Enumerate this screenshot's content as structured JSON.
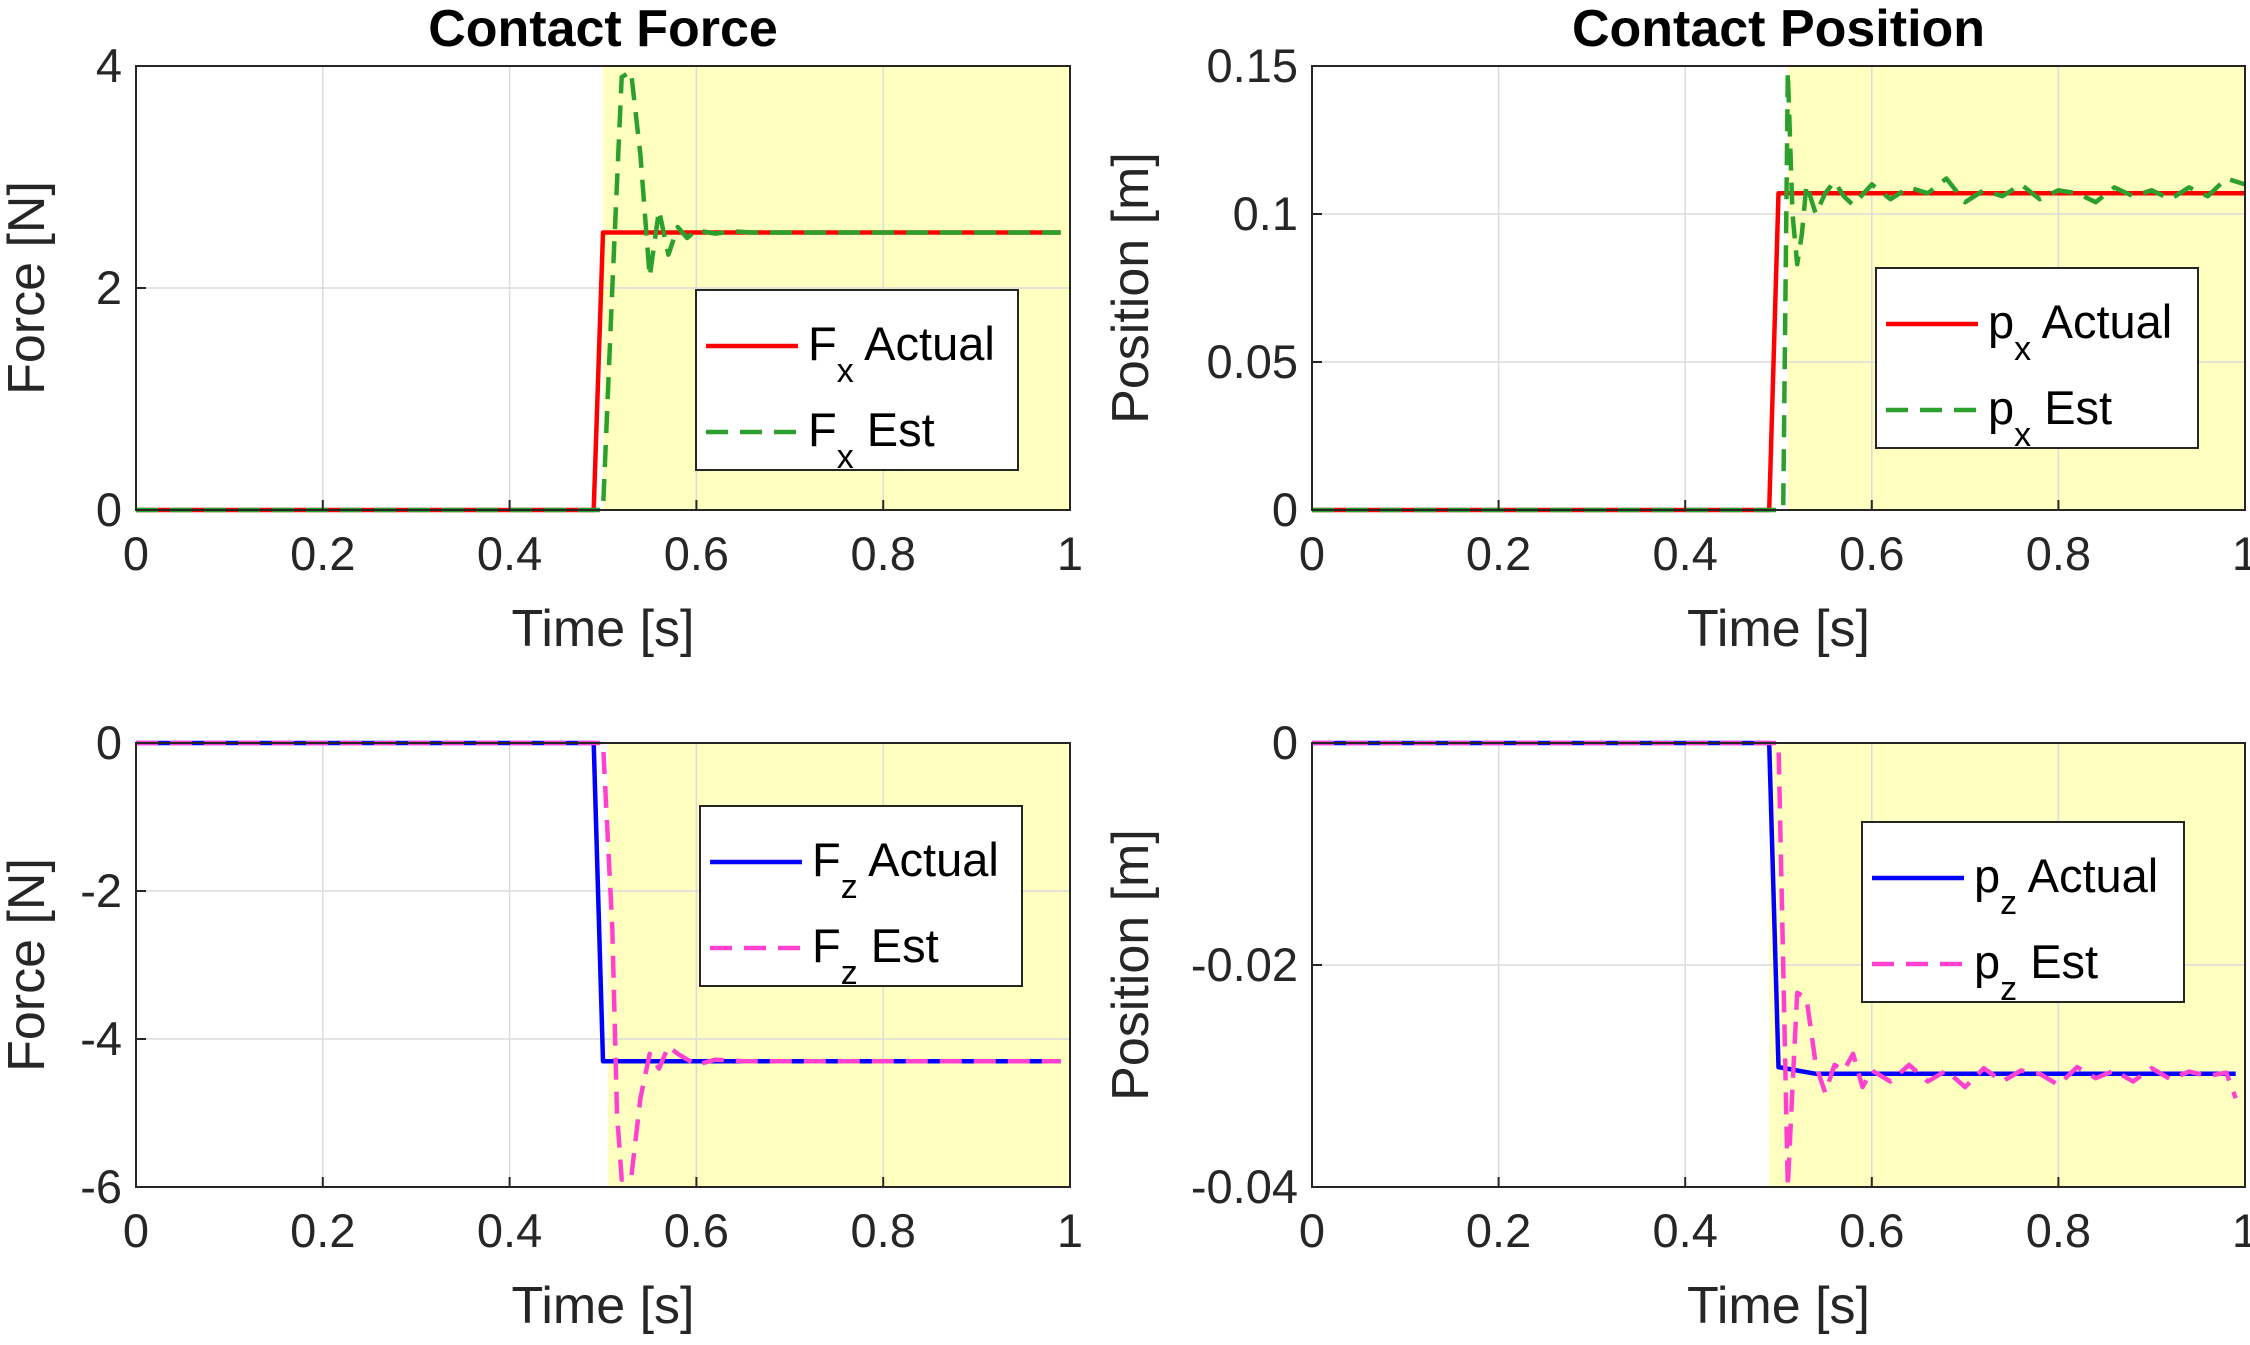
{
  "chart_data": [
    {
      "id": "force-x",
      "type": "line",
      "title": "Contact Force",
      "xlabel": "Time [s]",
      "ylabel": "Force [N]",
      "xlim": [
        0,
        1
      ],
      "ylim": [
        0,
        4
      ],
      "xticks": [
        0,
        0.2,
        0.4,
        0.6,
        0.8,
        1
      ],
      "xtick_labels": [
        "0",
        "0.2",
        "0.4",
        "0.6",
        "0.8",
        "1"
      ],
      "yticks": [
        0,
        2,
        4
      ],
      "ytick_labels": [
        "0",
        "2",
        "4"
      ],
      "grid": true,
      "shaded_region": {
        "x_start": 0.5,
        "x_end": 1,
        "color": "#ffffbf"
      },
      "legend_position": "center-right",
      "series": [
        {
          "name": "F_x Actual",
          "label_main": "F",
          "label_sub": "x",
          "label_rest": " Actual",
          "color": "#ff0000",
          "style": "solid",
          "x": [
            0,
            0.49,
            0.5,
            0.99
          ],
          "y": [
            0,
            0,
            2.5,
            2.5
          ]
        },
        {
          "name": "F_x Est",
          "label_main": "F",
          "label_sub": "x",
          "label_rest": " Est",
          "color": "#2ca02c",
          "style": "dashed",
          "x": [
            0,
            0.5,
            0.51,
            0.52,
            0.53,
            0.54,
            0.55,
            0.56,
            0.57,
            0.58,
            0.59,
            0.6,
            0.62,
            0.64,
            0.66,
            0.7,
            0.99
          ],
          "y": [
            0,
            0,
            2.0,
            3.9,
            3.95,
            3.2,
            2.1,
            2.7,
            2.3,
            2.55,
            2.45,
            2.52,
            2.49,
            2.51,
            2.5,
            2.5,
            2.5
          ]
        }
      ]
    },
    {
      "id": "position-x",
      "type": "line",
      "title": "Contact Position",
      "xlabel": "Time [s]",
      "ylabel": "Position [m]",
      "xlim": [
        0,
        1
      ],
      "ylim": [
        0,
        0.15
      ],
      "xticks": [
        0,
        0.2,
        0.4,
        0.6,
        0.8,
        1
      ],
      "xtick_labels": [
        "0",
        "0.2",
        "0.4",
        "0.6",
        "0.8",
        "1"
      ],
      "yticks": [
        0,
        0.05,
        0.1,
        0.15
      ],
      "ytick_labels": [
        "0",
        "0.05",
        "0.1",
        "0.15"
      ],
      "grid": true,
      "shaded_region": {
        "x_start": 0.51,
        "x_end": 1,
        "color": "#ffffbf"
      },
      "legend_position": "center-right",
      "series": [
        {
          "name": "p_x Actual",
          "label_main": "p",
          "label_sub": "x",
          "label_rest": " Actual",
          "color": "#ff0000",
          "style": "solid",
          "x": [
            0,
            0.49,
            0.5,
            1
          ],
          "y": [
            0,
            0,
            0.107,
            0.107
          ]
        },
        {
          "name": "p_x Est",
          "label_main": "p",
          "label_sub": "x",
          "label_rest": " Est",
          "color": "#2ca02c",
          "style": "dashed",
          "x": [
            0,
            0.505,
            0.51,
            0.515,
            0.52,
            0.525,
            0.53,
            0.54,
            0.55,
            0.56,
            0.57,
            0.58,
            0.6,
            0.62,
            0.64,
            0.66,
            0.68,
            0.7,
            0.72,
            0.74,
            0.76,
            0.78,
            0.8,
            0.82,
            0.84,
            0.86,
            0.88,
            0.9,
            0.92,
            0.94,
            0.96,
            0.98,
            1
          ],
          "y": [
            0,
            0,
            0.148,
            0.1,
            0.083,
            0.093,
            0.11,
            0.1,
            0.107,
            0.111,
            0.106,
            0.103,
            0.11,
            0.105,
            0.109,
            0.107,
            0.112,
            0.104,
            0.108,
            0.106,
            0.11,
            0.105,
            0.108,
            0.107,
            0.104,
            0.109,
            0.106,
            0.108,
            0.105,
            0.109,
            0.106,
            0.112,
            0.11
          ]
        }
      ]
    },
    {
      "id": "force-z",
      "type": "line",
      "title": "",
      "xlabel": "Time [s]",
      "ylabel": "Force [N]",
      "xlim": [
        0,
        1
      ],
      "ylim": [
        -6,
        0
      ],
      "xticks": [
        0,
        0.2,
        0.4,
        0.6,
        0.8,
        1
      ],
      "xtick_labels": [
        "0",
        "0.2",
        "0.4",
        "0.6",
        "0.8",
        "1"
      ],
      "yticks": [
        -6,
        -4,
        -2,
        0
      ],
      "ytick_labels": [
        "-6",
        "-4",
        "-2",
        "0"
      ],
      "grid": true,
      "shaded_region": {
        "x_start": 0.505,
        "x_end": 1,
        "color": "#ffffbf"
      },
      "legend_position": "center-right",
      "series": [
        {
          "name": "F_z Actual",
          "label_main": "F",
          "label_sub": "z",
          "label_rest": " Actual",
          "color": "#0000ff",
          "style": "solid",
          "x": [
            0,
            0.49,
            0.5,
            0.99
          ],
          "y": [
            0,
            0,
            -4.3,
            -4.3
          ]
        },
        {
          "name": "F_z Est",
          "label_main": "F",
          "label_sub": "z",
          "label_rest": " Est",
          "color": "#ff40d0",
          "style": "dashed",
          "x": [
            0,
            0.5,
            0.51,
            0.515,
            0.52,
            0.53,
            0.54,
            0.55,
            0.56,
            0.57,
            0.58,
            0.6,
            0.62,
            0.65,
            0.99
          ],
          "y": [
            0,
            0,
            -2.5,
            -5.0,
            -5.9,
            -5.9,
            -4.8,
            -4.2,
            -4.4,
            -4.1,
            -4.2,
            -4.35,
            -4.28,
            -4.3,
            -4.3
          ]
        }
      ]
    },
    {
      "id": "position-z",
      "type": "line",
      "title": "",
      "xlabel": "Time [s]",
      "ylabel": "Position [m]",
      "xlim": [
        0,
        1
      ],
      "ylim": [
        -0.04,
        0
      ],
      "xticks": [
        0,
        0.2,
        0.4,
        0.6,
        0.8,
        1
      ],
      "xtick_labels": [
        "0",
        "0.2",
        "0.4",
        "0.6",
        "0.8",
        "1"
      ],
      "yticks": [
        -0.04,
        -0.02,
        0
      ],
      "ytick_labels": [
        "-0.04",
        "-0.02",
        "0"
      ],
      "grid": true,
      "shaded_region": {
        "x_start": 0.49,
        "x_end": 1,
        "color": "#ffffbf"
      },
      "legend_position": "center-right",
      "series": [
        {
          "name": "p_z Actual",
          "label_main": "p",
          "label_sub": "z",
          "label_rest": " Actual",
          "color": "#0000ff",
          "style": "solid",
          "x": [
            0,
            0.49,
            0.5,
            0.52,
            0.54,
            0.6,
            0.99
          ],
          "y": [
            0,
            0,
            -0.0292,
            -0.0295,
            -0.0298,
            -0.0298,
            -0.0298
          ]
        },
        {
          "name": "p_z Est",
          "label_main": "p",
          "label_sub": "z",
          "label_rest": " Est",
          "color": "#ff40d0",
          "style": "dashed",
          "x": [
            0,
            0.5,
            0.505,
            0.51,
            0.515,
            0.52,
            0.53,
            0.54,
            0.55,
            0.56,
            0.57,
            0.58,
            0.59,
            0.6,
            0.62,
            0.64,
            0.66,
            0.68,
            0.7,
            0.72,
            0.74,
            0.76,
            0.78,
            0.8,
            0.82,
            0.84,
            0.86,
            0.88,
            0.9,
            0.92,
            0.94,
            0.96,
            0.98,
            0.99
          ],
          "y": [
            0,
            0,
            -0.02,
            -0.04,
            -0.031,
            -0.0225,
            -0.023,
            -0.029,
            -0.0315,
            -0.029,
            -0.0295,
            -0.028,
            -0.031,
            -0.0295,
            -0.0305,
            -0.029,
            -0.0305,
            -0.0295,
            -0.031,
            -0.0293,
            -0.0305,
            -0.0295,
            -0.0298,
            -0.0308,
            -0.0292,
            -0.0302,
            -0.0295,
            -0.0305,
            -0.0293,
            -0.0303,
            -0.0296,
            -0.03,
            -0.0297,
            -0.032
          ]
        }
      ]
    }
  ]
}
